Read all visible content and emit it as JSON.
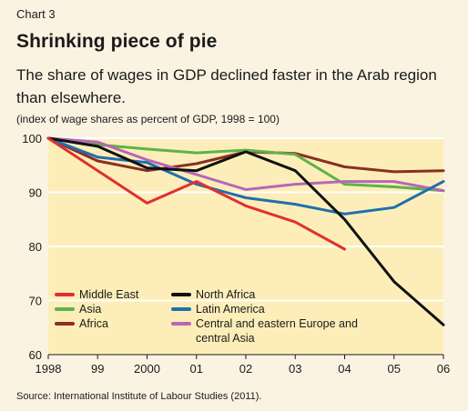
{
  "header": {
    "chart_number": "Chart 3",
    "title": "Shrinking piece of pie",
    "subtitle": "The share of wages in GDP declined faster in the Arab region than elsewhere.",
    "note": "(index of wage shares as percent of GDP, 1998 = 100)"
  },
  "source": "Source: International Institute of Labour Studies (2011).",
  "chart_data": {
    "type": "line",
    "title": "Shrinking piece of pie",
    "xlabel": "",
    "ylabel": "",
    "x": [
      1998,
      1999,
      2000,
      2001,
      2002,
      2003,
      2004,
      2005,
      2006
    ],
    "x_tick_labels": [
      "1998",
      "99",
      "2000",
      "01",
      "02",
      "03",
      "04",
      "05",
      "06"
    ],
    "y_ticks": [
      60,
      70,
      80,
      90,
      100
    ],
    "y_tick_labels": [
      "60",
      "70",
      "80",
      "90",
      "100"
    ],
    "ylim": [
      60,
      100
    ],
    "grid": "horizontal",
    "legend_position": "bottom-left inside plot",
    "series": [
      {
        "name": "Middle East",
        "color": "#e03030",
        "values": [
          100,
          94,
          88,
          92,
          87.5,
          84.5,
          79.5,
          null,
          null
        ]
      },
      {
        "name": "North Africa",
        "color": "#111111",
        "values": [
          100,
          98.5,
          94.5,
          94,
          97.5,
          94,
          85,
          73.5,
          65.5
        ]
      },
      {
        "name": "Asia",
        "color": "#5fb24a",
        "values": [
          100,
          98.8,
          98,
          97.3,
          97.8,
          97,
          91.5,
          91,
          90.3
        ]
      },
      {
        "name": "Latin America",
        "color": "#1f6fae",
        "values": [
          100,
          96.5,
          95.5,
          91.5,
          89,
          87.8,
          86,
          87.2,
          92
        ]
      },
      {
        "name": "Africa",
        "color": "#8b2e23",
        "values": [
          100,
          95.8,
          94,
          95.3,
          97.5,
          97.2,
          94.7,
          93.8,
          94
        ]
      },
      {
        "name": "Central and eastern Europe and central Asia",
        "color": "#b866b8",
        "values": [
          100,
          99.3,
          96,
          93.3,
          90.5,
          91.5,
          92,
          92,
          90.3
        ]
      }
    ]
  }
}
